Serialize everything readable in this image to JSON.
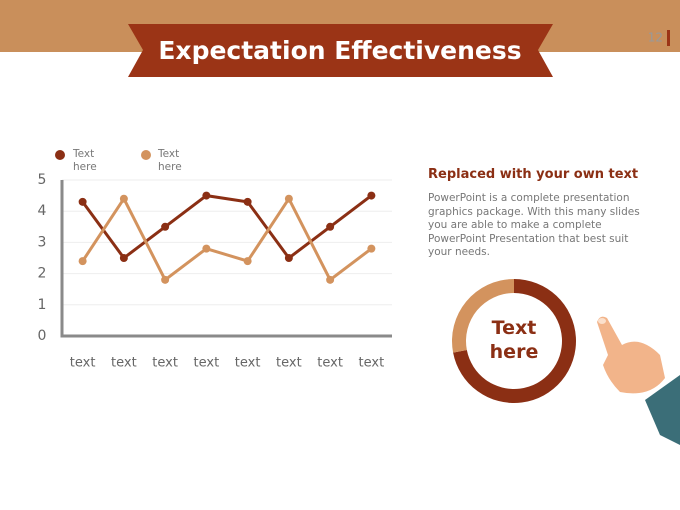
{
  "header": {
    "title": "Expectation Effectiveness",
    "page_number": "12"
  },
  "text_block": {
    "heading": "Replaced with your own text",
    "body": "PowerPoint is a complete presentation graphics package. With this many slides you are able to make a complete PowerPoint Presentation that best suit your needs."
  },
  "chart_data": [
    {
      "type": "line",
      "categories": [
        "text",
        "text",
        "text",
        "text",
        "text",
        "text",
        "text",
        "text"
      ],
      "series": [
        {
          "name": "Text here",
          "color": "#8b2f14",
          "values": [
            4.3,
            2.5,
            3.5,
            4.5,
            4.3,
            2.5,
            3.5,
            4.5
          ]
        },
        {
          "name": "Text here",
          "color": "#d3935e",
          "values": [
            2.4,
            4.4,
            1.8,
            2.8,
            2.4,
            4.4,
            1.8,
            2.8
          ]
        }
      ],
      "ylim": [
        0,
        5
      ],
      "yticks": [
        0,
        1,
        2,
        3,
        4,
        5
      ],
      "grid": true
    },
    {
      "type": "pie",
      "label": "Text here",
      "values": [
        72,
        28
      ],
      "colors": [
        "#8b2f14",
        "#d3935e"
      ]
    }
  ]
}
